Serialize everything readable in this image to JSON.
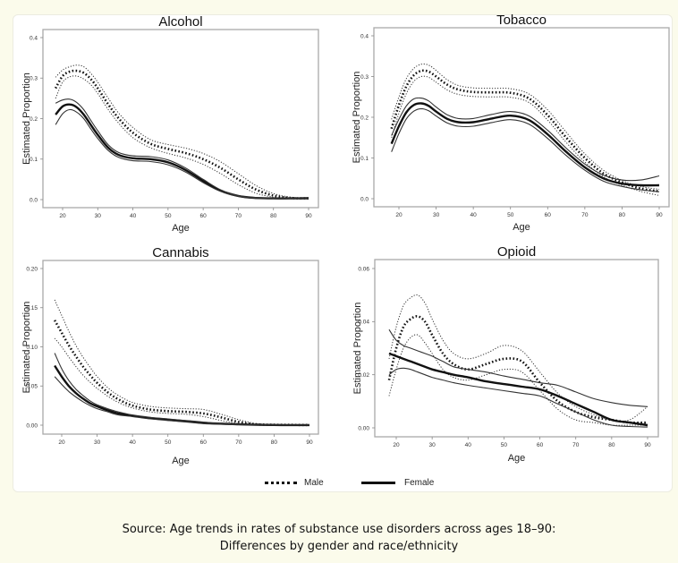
{
  "legend": {
    "male_label": "Male",
    "female_label": "Female"
  },
  "caption": {
    "line1": "Source: Age trends in rates of substance use disorders across ages 18–90:",
    "line2": "Differences by gender and race/ethnicity"
  },
  "colors": {
    "page_background": "#fbfbeb",
    "card_background": "#ffffff",
    "line": "#111111"
  },
  "chart_data": [
    {
      "type": "line",
      "title": "Alcohol",
      "xlabel": "Age",
      "ylabel": "Estimated Proportion",
      "xlim": [
        18,
        90
      ],
      "ylim": [
        0,
        0.4
      ],
      "xticks": [
        20,
        30,
        40,
        50,
        60,
        70,
        80,
        90
      ],
      "yticks": [
        "0.0",
        "0.1",
        "0.2",
        "0.3",
        "0.4"
      ],
      "ytick_values": [
        0,
        0.1,
        0.2,
        0.3,
        0.4
      ],
      "x": [
        18,
        20,
        22,
        24,
        26,
        28,
        30,
        33,
        36,
        40,
        45,
        50,
        55,
        60,
        65,
        70,
        75,
        80,
        85,
        90
      ],
      "series": [
        {
          "name": "Male",
          "style": "dotted",
          "values": [
            0.275,
            0.305,
            0.316,
            0.318,
            0.313,
            0.298,
            0.275,
            0.235,
            0.2,
            0.165,
            0.138,
            0.125,
            0.115,
            0.1,
            0.078,
            0.05,
            0.025,
            0.01,
            0.004,
            0.003
          ]
        },
        {
          "name": "Male upper CI",
          "style": "dotted-thin",
          "values": [
            0.302,
            0.32,
            0.328,
            0.332,
            0.328,
            0.312,
            0.29,
            0.25,
            0.213,
            0.178,
            0.148,
            0.136,
            0.127,
            0.114,
            0.093,
            0.064,
            0.035,
            0.015,
            0.006,
            0.004
          ]
        },
        {
          "name": "Male lower CI",
          "style": "dotted-thin",
          "values": [
            0.25,
            0.29,
            0.303,
            0.305,
            0.298,
            0.284,
            0.262,
            0.222,
            0.188,
            0.153,
            0.128,
            0.114,
            0.103,
            0.087,
            0.064,
            0.037,
            0.016,
            0.006,
            0.002,
            0.002
          ]
        },
        {
          "name": "Female",
          "style": "solid",
          "values": [
            0.21,
            0.23,
            0.235,
            0.228,
            0.21,
            0.185,
            0.16,
            0.128,
            0.11,
            0.102,
            0.1,
            0.092,
            0.073,
            0.046,
            0.022,
            0.009,
            0.004,
            0.003,
            0.003,
            0.003
          ]
        },
        {
          "name": "Female upper CI",
          "style": "solid-thin",
          "values": [
            0.238,
            0.246,
            0.248,
            0.24,
            0.222,
            0.196,
            0.17,
            0.135,
            0.116,
            0.108,
            0.106,
            0.098,
            0.078,
            0.05,
            0.024,
            0.01,
            0.005,
            0.004,
            0.004,
            0.005
          ]
        },
        {
          "name": "Female lower CI",
          "style": "solid-thin",
          "values": [
            0.185,
            0.212,
            0.222,
            0.216,
            0.2,
            0.175,
            0.151,
            0.121,
            0.104,
            0.096,
            0.094,
            0.086,
            0.068,
            0.042,
            0.02,
            0.008,
            0.003,
            0.002,
            0.002,
            0.002
          ]
        }
      ]
    },
    {
      "type": "line",
      "title": "Tobacco",
      "xlabel": "Age",
      "ylabel": "Estimated Proportion",
      "xlim": [
        18,
        90
      ],
      "ylim": [
        0,
        0.4
      ],
      "xticks": [
        20,
        30,
        40,
        50,
        60,
        70,
        80,
        90
      ],
      "yticks": [
        "0.0",
        "0.1",
        "0.2",
        "0.3",
        "0.4"
      ],
      "ytick_values": [
        0,
        0.1,
        0.2,
        0.3,
        0.4
      ],
      "x": [
        18,
        20,
        22,
        24,
        26,
        28,
        30,
        33,
        36,
        40,
        45,
        50,
        55,
        60,
        65,
        70,
        75,
        80,
        85,
        90
      ],
      "series": [
        {
          "name": "Male",
          "style": "dotted",
          "values": [
            0.172,
            0.23,
            0.276,
            0.303,
            0.314,
            0.312,
            0.3,
            0.28,
            0.268,
            0.262,
            0.261,
            0.26,
            0.246,
            0.205,
            0.15,
            0.1,
            0.062,
            0.04,
            0.025,
            0.018
          ]
        },
        {
          "name": "Male upper CI",
          "style": "dotted-thin",
          "values": [
            0.195,
            0.25,
            0.295,
            0.32,
            0.33,
            0.328,
            0.315,
            0.292,
            0.278,
            0.272,
            0.271,
            0.27,
            0.257,
            0.218,
            0.163,
            0.11,
            0.07,
            0.045,
            0.03,
            0.023
          ]
        },
        {
          "name": "Male lower CI",
          "style": "dotted-thin",
          "values": [
            0.15,
            0.21,
            0.258,
            0.288,
            0.3,
            0.298,
            0.286,
            0.267,
            0.256,
            0.251,
            0.25,
            0.249,
            0.236,
            0.193,
            0.138,
            0.09,
            0.054,
            0.033,
            0.018,
            0.008
          ]
        },
        {
          "name": "Female",
          "style": "solid",
          "values": [
            0.135,
            0.178,
            0.212,
            0.23,
            0.234,
            0.228,
            0.214,
            0.196,
            0.188,
            0.188,
            0.197,
            0.204,
            0.193,
            0.158,
            0.115,
            0.077,
            0.05,
            0.037,
            0.033,
            0.033
          ]
        },
        {
          "name": "Female upper CI",
          "style": "solid-thin",
          "values": [
            0.155,
            0.195,
            0.228,
            0.245,
            0.247,
            0.24,
            0.225,
            0.206,
            0.197,
            0.197,
            0.207,
            0.214,
            0.203,
            0.168,
            0.124,
            0.085,
            0.058,
            0.046,
            0.046,
            0.056
          ]
        },
        {
          "name": "Female lower CI",
          "style": "solid-thin",
          "values": [
            0.115,
            0.16,
            0.196,
            0.215,
            0.221,
            0.216,
            0.203,
            0.186,
            0.178,
            0.178,
            0.187,
            0.194,
            0.183,
            0.148,
            0.106,
            0.07,
            0.043,
            0.03,
            0.022,
            0.017
          ]
        }
      ]
    },
    {
      "type": "line",
      "title": "Cannabis",
      "xlabel": "Age",
      "ylabel": "Estimated Proportion",
      "xlim": [
        18,
        90
      ],
      "ylim": [
        0,
        0.2
      ],
      "xticks": [
        20,
        30,
        40,
        50,
        60,
        70,
        80,
        90
      ],
      "yticks": [
        "0.00",
        "0.05",
        "0.10",
        "0.15",
        "0.20"
      ],
      "ytick_values": [
        0,
        0.05,
        0.1,
        0.15,
        0.2
      ],
      "x": [
        18,
        20,
        22,
        24,
        26,
        28,
        30,
        33,
        36,
        40,
        45,
        50,
        55,
        60,
        65,
        70,
        75,
        80,
        85,
        90
      ],
      "series": [
        {
          "name": "Male",
          "style": "dotted",
          "values": [
            0.134,
            0.118,
            0.102,
            0.088,
            0.075,
            0.064,
            0.054,
            0.042,
            0.033,
            0.025,
            0.02,
            0.018,
            0.017,
            0.015,
            0.01,
            0.004,
            0.001,
            0.0005,
            0.0003,
            0.0002
          ]
        },
        {
          "name": "Male upper CI",
          "style": "dotted-thin",
          "values": [
            0.16,
            0.14,
            0.12,
            0.102,
            0.087,
            0.074,
            0.062,
            0.048,
            0.038,
            0.029,
            0.024,
            0.022,
            0.021,
            0.02,
            0.014,
            0.007,
            0.002,
            0.001,
            0.0005,
            0.0003
          ]
        },
        {
          "name": "Male lower CI",
          "style": "dotted-thin",
          "values": [
            0.111,
            0.1,
            0.087,
            0.075,
            0.064,
            0.055,
            0.047,
            0.037,
            0.029,
            0.022,
            0.017,
            0.015,
            0.014,
            0.011,
            0.006,
            0.002,
            0.0005,
            0.0002,
            0.0001,
            0.0001
          ]
        },
        {
          "name": "Female",
          "style": "solid",
          "values": [
            0.076,
            0.062,
            0.05,
            0.041,
            0.034,
            0.028,
            0.024,
            0.019,
            0.015,
            0.012,
            0.009,
            0.007,
            0.005,
            0.003,
            0.002,
            0.001,
            0.0005,
            0.0002,
            0.0001,
            0.0001
          ]
        },
        {
          "name": "Female upper CI",
          "style": "solid-thin",
          "values": [
            0.092,
            0.072,
            0.057,
            0.046,
            0.038,
            0.031,
            0.026,
            0.021,
            0.017,
            0.013,
            0.01,
            0.008,
            0.006,
            0.004,
            0.002,
            0.001,
            0.0006,
            0.0003,
            0.0002,
            0.0002
          ]
        },
        {
          "name": "Female lower CI",
          "style": "solid-thin",
          "values": [
            0.062,
            0.052,
            0.043,
            0.036,
            0.03,
            0.025,
            0.021,
            0.017,
            0.013,
            0.011,
            0.008,
            0.006,
            0.004,
            0.002,
            0.001,
            0.0006,
            0.0003,
            0.0001,
            0.0001,
            0.0
          ]
        }
      ]
    },
    {
      "type": "line",
      "title": "Opioid",
      "xlabel": "Age",
      "ylabel": "Estimated Proportion",
      "xlim": [
        18,
        90
      ],
      "ylim": [
        0,
        0.06
      ],
      "xticks": [
        20,
        30,
        40,
        50,
        60,
        70,
        80,
        90
      ],
      "yticks": [
        "0.00",
        "0.02",
        "0.04",
        "0.06"
      ],
      "ytick_values": [
        0,
        0.02,
        0.04,
        0.06
      ],
      "x": [
        18,
        20,
        22,
        24,
        26,
        28,
        30,
        33,
        36,
        40,
        45,
        50,
        55,
        60,
        65,
        70,
        75,
        80,
        85,
        90
      ],
      "series": [
        {
          "name": "Male",
          "style": "dotted",
          "values": [
            0.018,
            0.03,
            0.038,
            0.041,
            0.042,
            0.04,
            0.035,
            0.028,
            0.024,
            0.022,
            0.024,
            0.026,
            0.025,
            0.017,
            0.01,
            0.006,
            0.004,
            0.003,
            0.002,
            0.002
          ]
        },
        {
          "name": "Male upper CI",
          "style": "dotted-thin",
          "values": [
            0.026,
            0.038,
            0.046,
            0.049,
            0.05,
            0.047,
            0.041,
            0.033,
            0.028,
            0.026,
            0.028,
            0.031,
            0.029,
            0.021,
            0.013,
            0.008,
            0.005,
            0.003,
            0.003,
            0.008
          ]
        },
        {
          "name": "Male lower CI",
          "style": "dotted-thin",
          "values": [
            0.012,
            0.022,
            0.03,
            0.034,
            0.035,
            0.032,
            0.028,
            0.022,
            0.019,
            0.018,
            0.02,
            0.022,
            0.021,
            0.014,
            0.007,
            0.003,
            0.002,
            0.001,
            0.001,
            0.001
          ]
        },
        {
          "name": "Female",
          "style": "solid",
          "values": [
            0.028,
            0.027,
            0.026,
            0.025,
            0.024,
            0.023,
            0.022,
            0.021,
            0.02,
            0.019,
            0.0175,
            0.0165,
            0.0155,
            0.0145,
            0.012,
            0.009,
            0.006,
            0.003,
            0.002,
            0.001
          ]
        },
        {
          "name": "Female upper CI",
          "style": "solid-thin",
          "values": [
            0.037,
            0.033,
            0.031,
            0.03,
            0.029,
            0.028,
            0.027,
            0.025,
            0.023,
            0.022,
            0.021,
            0.0195,
            0.0183,
            0.017,
            0.016,
            0.0135,
            0.011,
            0.0095,
            0.0085,
            0.008
          ]
        },
        {
          "name": "Female lower CI",
          "style": "solid-thin",
          "values": [
            0.02,
            0.022,
            0.0225,
            0.022,
            0.021,
            0.02,
            0.019,
            0.018,
            0.017,
            0.016,
            0.015,
            0.014,
            0.013,
            0.012,
            0.009,
            0.006,
            0.003,
            0.001,
            0.0005,
            0.0003
          ]
        }
      ]
    }
  ]
}
